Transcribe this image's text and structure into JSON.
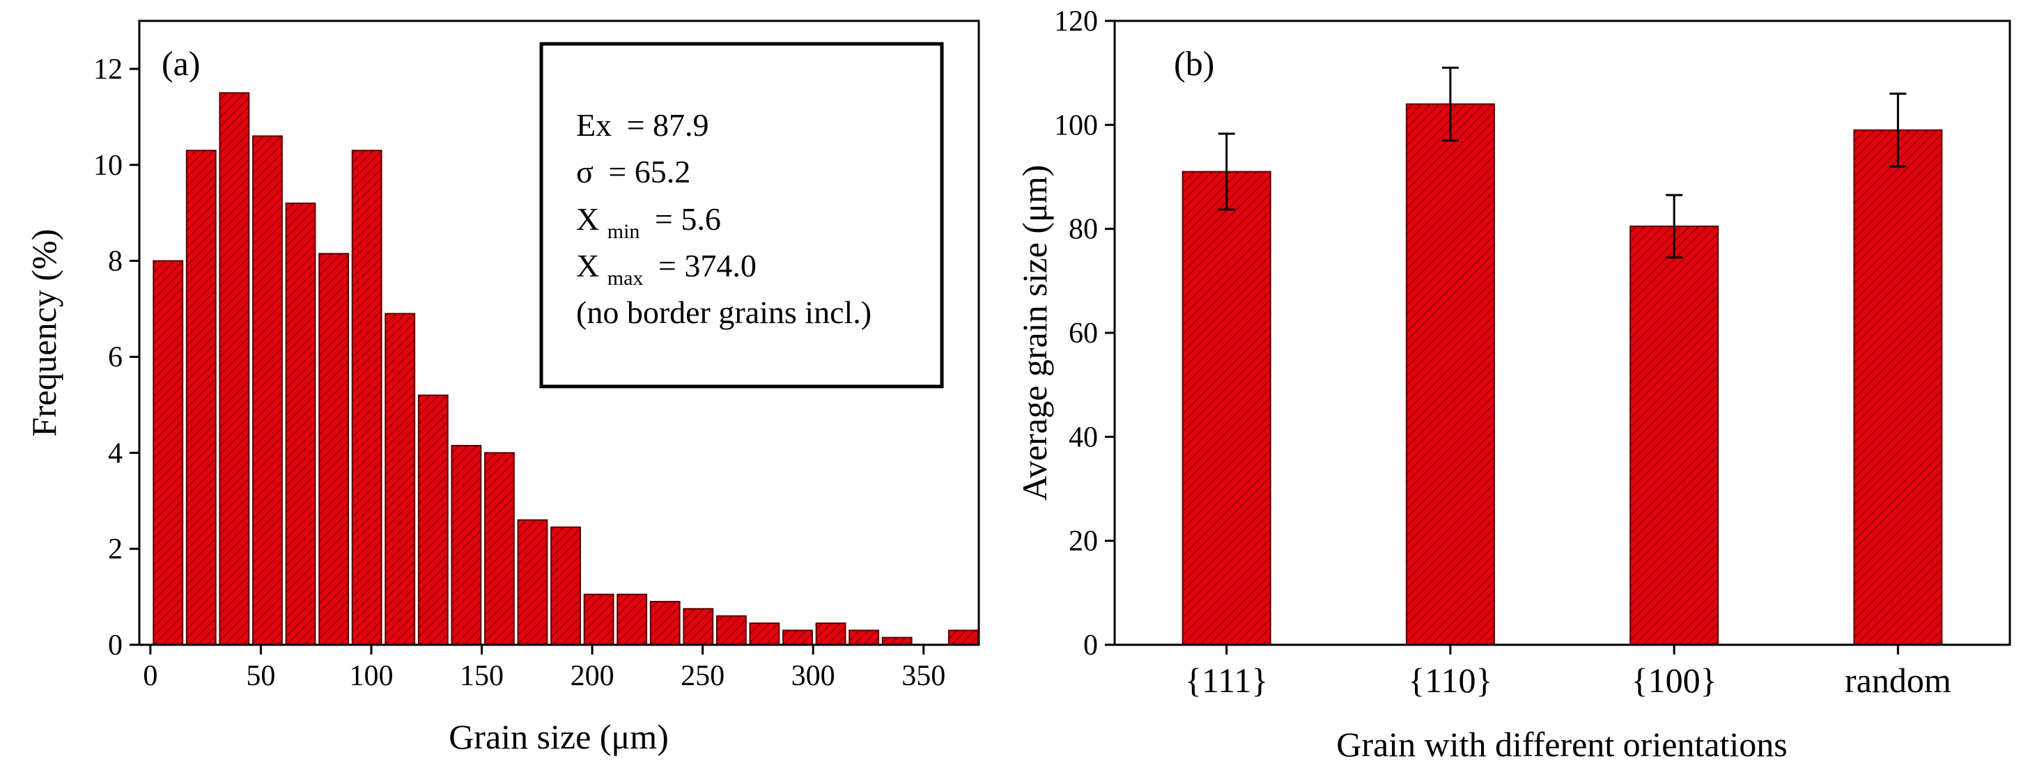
{
  "colors": {
    "bar_fill": "#e3000f",
    "bar_stroke": "#5a0000",
    "hatch": "#8a0000",
    "axis": "#000000",
    "background": "#ffffff"
  },
  "chart_data": [
    {
      "type": "bar",
      "panel": "a",
      "panel_label": "(a)",
      "xlabel": "Grain size (μm)",
      "ylabel": "Frequency (%)",
      "xlim": [
        -5,
        375
      ],
      "ylim": [
        0,
        13
      ],
      "xticks": [
        0,
        50,
        100,
        150,
        200,
        250,
        300,
        350
      ],
      "yticks": [
        0,
        2,
        4,
        6,
        8,
        10,
        12
      ],
      "bin_width": 15,
      "bin_centers": [
        8,
        23,
        38,
        53,
        68,
        83,
        98,
        113,
        128,
        143,
        158,
        173,
        188,
        203,
        218,
        233,
        248,
        263,
        278,
        293,
        308,
        323,
        338,
        368
      ],
      "values": [
        8.0,
        10.3,
        11.5,
        10.6,
        9.2,
        8.15,
        10.3,
        6.9,
        5.2,
        4.15,
        4.0,
        2.6,
        2.45,
        1.05,
        1.05,
        0.9,
        0.75,
        0.6,
        0.45,
        0.3,
        0.45,
        0.3,
        0.15,
        0.3
      ],
      "stats_box": {
        "ex_label": "Ex",
        "ex_value": "= 87.9",
        "sigma_label": "σ",
        "sigma_value": "= 65.2",
        "xmin_main": "X",
        "xmin_sub": "min",
        "xmin_value": "= 5.6",
        "xmax_main": "X",
        "xmax_sub": "max",
        "xmax_value": "= 374.0",
        "note": "(no border grains incl.)"
      }
    },
    {
      "type": "bar",
      "panel": "b",
      "panel_label": "(b)",
      "xlabel": "Grain with different orientations",
      "ylabel": "Average grain size (μm)",
      "ylim": [
        0,
        120
      ],
      "yticks": [
        0,
        20,
        40,
        60,
        80,
        100,
        120
      ],
      "categories": [
        "{111}",
        "{110}",
        "{100}",
        "random"
      ],
      "values": [
        91,
        104,
        80.5,
        99
      ],
      "errors": [
        7.3,
        7.0,
        6.0,
        7.0
      ]
    }
  ]
}
